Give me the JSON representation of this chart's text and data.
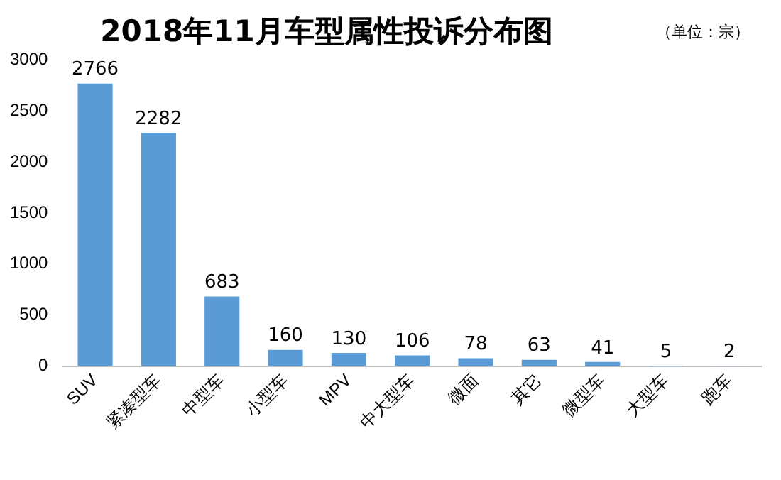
{
  "chart_data": {
    "type": "bar",
    "title": "2018年11月车型属性投诉分布图",
    "subtitle": "（单位：宗）",
    "categories": [
      "SUV",
      "紧凑型车",
      "中型车",
      "小型车",
      "MPV",
      "中大型车",
      "微面",
      "其它",
      "微型车",
      "大型车",
      "跑车"
    ],
    "values": [
      2766,
      2282,
      683,
      160,
      130,
      106,
      78,
      63,
      41,
      5,
      2
    ],
    "color": "#5b9bd5",
    "ylim": [
      0,
      3000
    ],
    "yticks": [
      0,
      500,
      1000,
      1500,
      2000,
      2500,
      3000
    ],
    "grid": false,
    "data_labels": true,
    "legend": false
  }
}
